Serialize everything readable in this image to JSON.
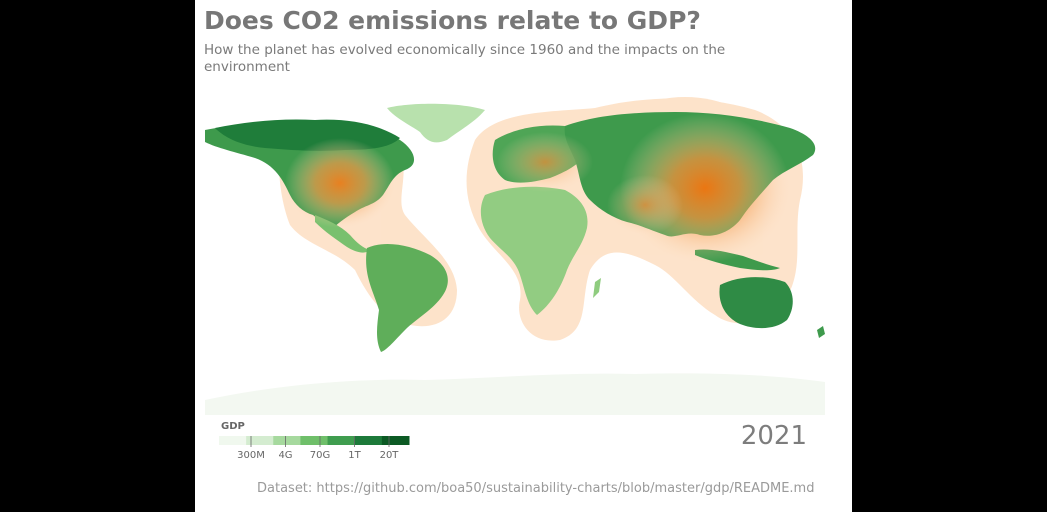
{
  "title": "Does CO2 emissions relate to GDP?",
  "subtitle": "How the planet has evolved economically since 1960 and the impacts on the environment",
  "year": "2021",
  "dataset": "Dataset: https://github.com/boa50/sustainability-charts/blob/master/gdp/README.md",
  "legend": {
    "title": "GDP",
    "ticks": [
      "300M",
      "4G",
      "70G",
      "1T",
      "20T"
    ],
    "colors": [
      "#f0f8ee",
      "#d4ecd0",
      "#a6d99e",
      "#6fbf6a",
      "#3f9d4f",
      "#1d7a3a",
      "#0c5a24"
    ]
  },
  "colors": {
    "background": "#000000",
    "panel": "#ffffff",
    "land_low": "#a9d99b",
    "land_mid": "#5fae5a",
    "land_high": "#237d3c",
    "antarctica": "#f3f8f1",
    "emission_halo": "#fcd9b8",
    "emission_core": "#f07f1e"
  }
}
